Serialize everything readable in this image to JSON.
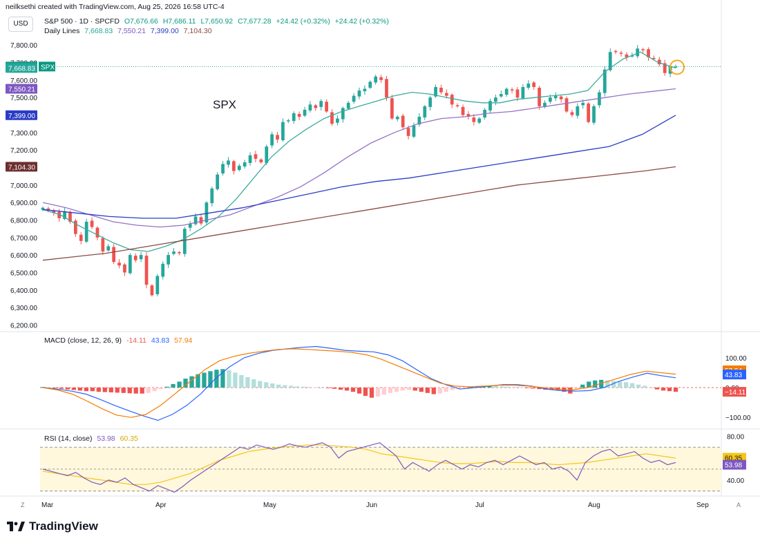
{
  "header": {
    "credit": "neilksethi created with TradingView.com, Aug 25, 2026 16:58 UTC-4",
    "currency": "USD",
    "symbol_line": "S&P 500 · 1D · SPCFD",
    "ohlc": {
      "o": "O7,676.66",
      "h": "H7,686.11",
      "l": "L7,650.92",
      "c": "C7,677.28",
      "chg": "+24.42 (+0.32%)",
      "chg2": "+24.42 (+0.32%)"
    },
    "daily_label": "Daily Lines",
    "daily_values": [
      "7,668.83",
      "7,550.21",
      "7,399.00",
      "7,104.30"
    ],
    "macd_label": "MACD (close, 12, 26, 9)",
    "macd_values": [
      "-14.11",
      "43.83",
      "57.94"
    ],
    "rsi_label": "RSI (14, close)",
    "rsi_values": [
      "53.98",
      "60.35"
    ],
    "brand": "TradingView",
    "corner_z": "Z",
    "corner_a": "A"
  },
  "colors": {
    "up": "#26a69a",
    "down": "#ef5350",
    "ma_teal": "#3aab9d",
    "ma_purple": "#9471c8",
    "ma_blue": "#2a3cc4",
    "ma_brown": "#8b4a3f",
    "macd": "#2962ff",
    "signal": "#f57c00",
    "rsi": "#7e57c2",
    "rsi_ma": "#f5c518"
  },
  "chart_data": [
    {
      "type": "candlestick",
      "annotation": "SPX",
      "x_labels": [
        "Mar",
        "Apr",
        "May",
        "Jun",
        "Jul",
        "Aug",
        "Sep"
      ],
      "y_ticks": [
        "7,800.00",
        "7,700.00",
        "7,600.00",
        "7,500.00",
        "7,400.00",
        "7,300.00",
        "7,200.00",
        "7,100.00",
        "7,000.00",
        "6,900.00",
        "6,800.00",
        "6,700.00",
        "6,600.00",
        "6,500.00",
        "6,400.00",
        "6,300.00",
        "6,200.00"
      ],
      "ylim": [
        6170,
        7860
      ],
      "last_price_label": "7,677.28",
      "symbol_tag": "SPX",
      "ma_tags": [
        "7,668.83",
        "7,550.21",
        "7,399.00",
        "7,104.30"
      ],
      "closes": [
        6870,
        6855,
        6840,
        6810,
        6850,
        6790,
        6720,
        6680,
        6790,
        6760,
        6700,
        6620,
        6650,
        6560,
        6540,
        6500,
        6600,
        6570,
        6600,
        6430,
        6370,
        6480,
        6550,
        6600,
        6620,
        6610,
        6750,
        6780,
        6820,
        6780,
        6900,
        6980,
        7060,
        7120,
        7140,
        7080,
        7110,
        7130,
        7170,
        7150,
        7130,
        7220,
        7290,
        7260,
        7360,
        7370,
        7410,
        7390,
        7430,
        7460,
        7440,
        7480,
        7420,
        7350,
        7380,
        7440,
        7470,
        7510,
        7540,
        7550,
        7590,
        7620,
        7600,
        7500,
        7380,
        7390,
        7330,
        7280,
        7340,
        7390,
        7450,
        7500,
        7560,
        7530,
        7510,
        7460,
        7450,
        7400,
        7390,
        7360,
        7380,
        7430,
        7480,
        7500,
        7520,
        7550,
        7540,
        7500,
        7560,
        7580,
        7560,
        7450,
        7470,
        7500,
        7510,
        7490,
        7420,
        7400,
        7450,
        7470,
        7360,
        7450,
        7530,
        7660,
        7760,
        7760,
        7750,
        7730,
        7740,
        7780,
        7770,
        7730,
        7720,
        7690,
        7640,
        7680,
        7677
      ],
      "series": [
        {
          "name": "MA 7,668.83",
          "values": [
            6860,
            6830,
            6770,
            6720,
            6670,
            6630,
            6620,
            6650,
            6690,
            6750,
            6820,
            6920,
            7040,
            7160,
            7250,
            7320,
            7380,
            7420,
            7450,
            7480,
            7510,
            7530,
            7520,
            7500,
            7480,
            7470,
            7470,
            7490,
            7500,
            7510,
            7520,
            7540,
            7650,
            7720,
            7760,
            7700,
            7668.83
          ]
        },
        {
          "name": "MA 7,550.21",
          "values": [
            6900,
            6870,
            6830,
            6790,
            6770,
            6760,
            6770,
            6800,
            6830,
            6880,
            6930,
            6990,
            7070,
            7160,
            7240,
            7300,
            7350,
            7380,
            7390,
            7410,
            7420,
            7440,
            7460,
            7480,
            7500,
            7520,
            7535,
            7550.21
          ]
        },
        {
          "name": "MA 7,399.00",
          "values": [
            6860,
            6840,
            6820,
            6810,
            6810,
            6840,
            6870,
            6910,
            6950,
            6990,
            7020,
            7040,
            7070,
            7100,
            7130,
            7160,
            7190,
            7220,
            7290,
            7399.0
          ]
        },
        {
          "name": "MA 7,104.30",
          "values": [
            6570,
            6590,
            6610,
            6640,
            6670,
            6700,
            6730,
            6760,
            6790,
            6820,
            6850,
            6880,
            6910,
            6940,
            6970,
            7000,
            7020,
            7040,
            7060,
            7080,
            7104.3
          ]
        }
      ]
    },
    {
      "type": "bar",
      "name": "MACD",
      "y_ticks": [
        "100.00",
        "0.00",
        "−100.00"
      ],
      "ylim": [
        -125,
        160
      ],
      "tags": [
        "57.94",
        "43.83",
        "−14.11"
      ],
      "histogram": [
        2,
        1,
        -2,
        -4,
        -6,
        -8,
        -10,
        -12,
        -12,
        -14,
        -15,
        -16,
        -17,
        -18,
        -19,
        -20,
        -20,
        -18,
        -12,
        -5,
        3,
        12,
        20,
        30,
        38,
        45,
        50,
        55,
        60,
        62,
        58,
        50,
        42,
        35,
        28,
        22,
        18,
        14,
        10,
        8,
        6,
        4,
        3,
        2,
        1,
        0,
        -2,
        -4,
        -7,
        -10,
        -14,
        -20,
        -28,
        -34,
        -30,
        -24,
        -18,
        -14,
        -10,
        -8,
        -10,
        -14,
        -18,
        -22,
        -20,
        -14,
        -8,
        -4,
        -1,
        2,
        4,
        6,
        7,
        6,
        4,
        3,
        2,
        1,
        -1,
        -3,
        -5,
        -7,
        -8,
        -10,
        -14,
        -20,
        -6,
        10,
        20,
        24,
        26,
        24,
        22,
        20,
        18,
        15,
        10,
        6,
        0,
        -6,
        -10,
        -12,
        -14
      ],
      "macd": [
        0,
        -5,
        -12,
        -22,
        -40,
        -60,
        -78,
        -95,
        -110,
        -90,
        -60,
        -20,
        30,
        70,
        100,
        115,
        125,
        130,
        135,
        138,
        132,
        125,
        122,
        120,
        110,
        90,
        60,
        30,
        10,
        -5,
        0,
        5,
        10,
        10,
        5,
        -5,
        -10,
        -12,
        -10,
        0,
        20,
        35,
        48,
        40,
        33
      ],
      "signal": [
        0,
        -8,
        -22,
        -45,
        -70,
        -92,
        -100,
        -90,
        -60,
        -20,
        20,
        60,
        90,
        105,
        115,
        122,
        128,
        130,
        128,
        125,
        122,
        118,
        110,
        95,
        75,
        55,
        35,
        15,
        5,
        3,
        5,
        8,
        8,
        5,
        0,
        -5,
        -8,
        0,
        15,
        30,
        45,
        55,
        50,
        45
      ]
    },
    {
      "type": "line",
      "name": "RSI",
      "y_ticks": [
        "80.00",
        "40.00"
      ],
      "ylim": [
        28,
        84
      ],
      "tags": [
        "60.35",
        "53.98"
      ],
      "rsi": [
        50,
        48,
        46,
        44,
        47,
        42,
        38,
        36,
        40,
        38,
        42,
        36,
        33,
        30,
        35,
        32,
        29,
        34,
        40,
        45,
        50,
        55,
        60,
        65,
        70,
        68,
        72,
        70,
        68,
        70,
        73,
        71,
        70,
        72,
        74,
        70,
        60,
        66,
        68,
        70,
        72,
        74,
        68,
        62,
        50,
        56,
        52,
        48,
        54,
        58,
        54,
        50,
        54,
        52,
        56,
        58,
        54,
        58,
        62,
        58,
        54,
        56,
        50,
        52,
        48,
        40,
        56,
        62,
        66,
        68,
        62,
        64,
        66,
        60,
        56,
        58,
        54,
        56
      ],
      "rsi_ma": [
        48,
        46,
        44,
        42,
        40,
        38,
        36,
        36,
        38,
        42,
        46,
        52,
        58,
        62,
        66,
        68,
        70,
        71,
        72,
        72,
        71,
        70,
        68,
        64,
        62,
        60,
        58,
        56,
        55,
        55,
        56,
        57,
        56,
        56,
        55,
        54,
        55,
        56,
        58,
        60,
        62,
        64,
        62,
        60
      ]
    }
  ]
}
